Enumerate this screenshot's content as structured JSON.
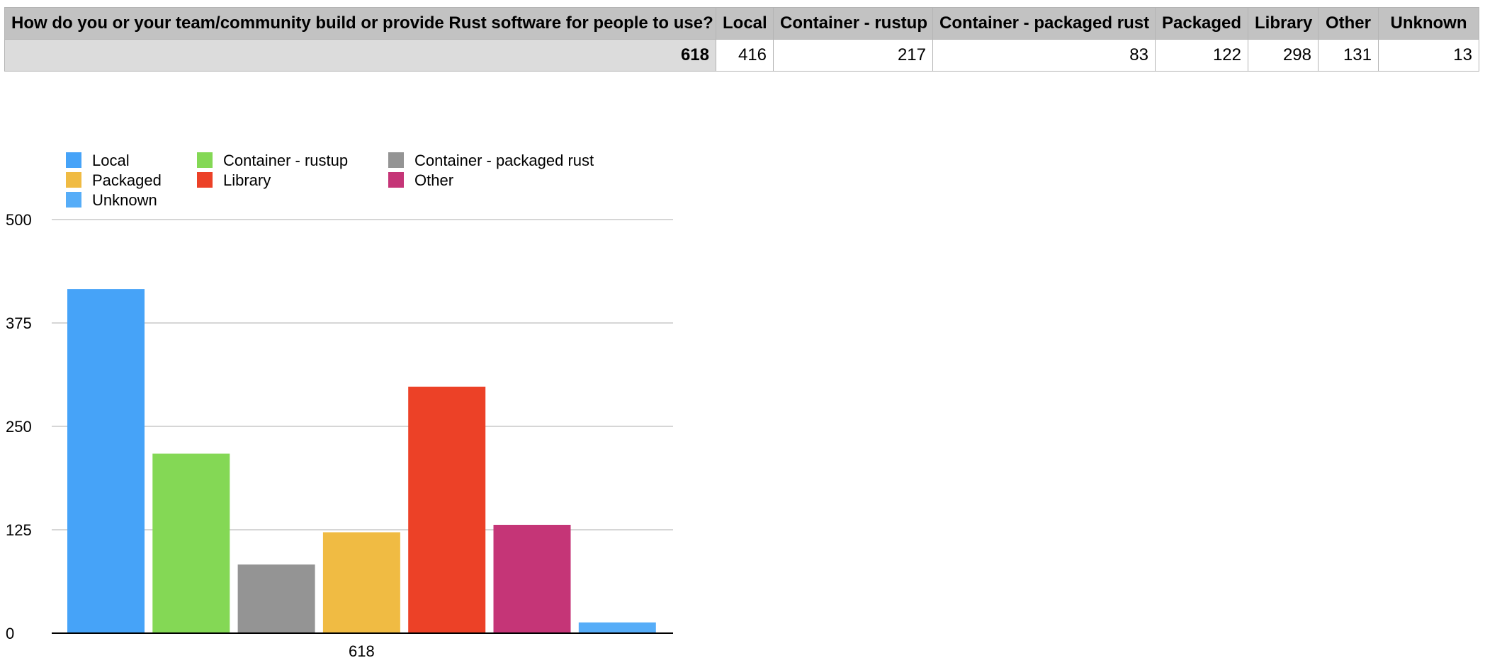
{
  "table": {
    "question": "How do you or your team/community build or provide Rust software for people to use?",
    "columns": [
      "Local",
      "Container - rustup",
      "Container - packaged rust",
      "Packaged",
      "Library",
      "Other",
      "Unknown"
    ],
    "total": "618",
    "values": [
      "416",
      "217",
      "83",
      "122",
      "298",
      "131",
      "13"
    ]
  },
  "chart_data": {
    "type": "bar",
    "categories": [
      "618"
    ],
    "series": [
      {
        "name": "Local",
        "values": [
          416
        ],
        "color": "#46a3f8"
      },
      {
        "name": "Container - rustup",
        "values": [
          217
        ],
        "color": "#84d855"
      },
      {
        "name": "Container - packaged rust",
        "values": [
          83
        ],
        "color": "#949494"
      },
      {
        "name": "Packaged",
        "values": [
          122
        ],
        "color": "#f0bb43"
      },
      {
        "name": "Library",
        "values": [
          298
        ],
        "color": "#ec4127"
      },
      {
        "name": "Other",
        "values": [
          131
        ],
        "color": "#c53577"
      },
      {
        "name": "Unknown",
        "values": [
          13
        ],
        "color": "#56adf8"
      }
    ],
    "legend_order": [
      "Local",
      "Container - rustup",
      "Container - packaged rust",
      "Packaged",
      "Library",
      "Other",
      "Unknown"
    ],
    "yticks": [
      0,
      125,
      250,
      375,
      500
    ],
    "ylim": [
      0,
      500
    ],
    "title": "",
    "xlabel": "",
    "ylabel": "",
    "legend": "top-left",
    "grid": true
  }
}
